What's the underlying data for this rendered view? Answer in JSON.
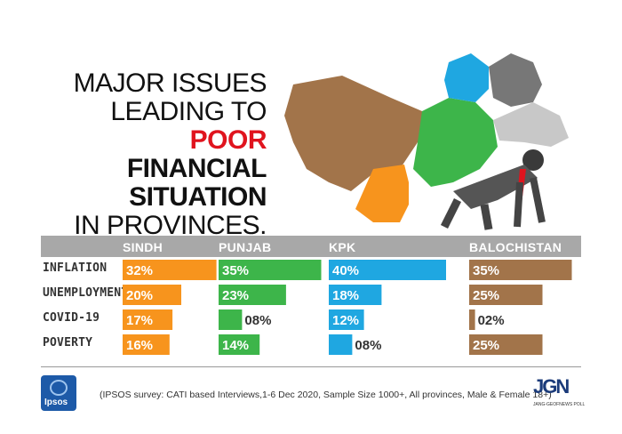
{
  "title": {
    "line1": "MAJOR ISSUES",
    "line2": "LEADING TO",
    "line3_red": "POOR",
    "line3_rest": " FINANCIAL",
    "line4": "SITUATION",
    "line5": "IN PROVINCES."
  },
  "chart_data": {
    "type": "bar",
    "categories": [
      "INFLATION",
      "UNEMPLOYMENT",
      "COVID-19",
      "POVERTY"
    ],
    "series": [
      {
        "name": "SINDH",
        "color": "#f7941d",
        "values": [
          32,
          20,
          17,
          16
        ],
        "labels": [
          "32%",
          "20%",
          "17%",
          "16%"
        ]
      },
      {
        "name": "PUNJAB",
        "color": "#3db54a",
        "values": [
          35,
          23,
          8,
          14
        ],
        "labels": [
          "35%",
          "23%",
          "08%",
          "14%"
        ]
      },
      {
        "name": "KPK",
        "color": "#1fa7e1",
        "values": [
          40,
          18,
          12,
          8
        ],
        "labels": [
          "40%",
          "18%",
          "12%",
          "08%"
        ]
      },
      {
        "name": "BALOCHISTAN",
        "color": "#a2744a",
        "values": [
          35,
          25,
          2,
          25
        ],
        "labels": [
          "35%",
          "25%",
          "02%",
          "25%"
        ]
      }
    ]
  },
  "footer": {
    "note": "(IPSOS survey: CATI based Interviews,1-6 Dec 2020, Sample Size 1000+, All provinces, Male & Female 18+)",
    "ipsos_logo_text": "Ipsos",
    "jgp_logo_text": "JGN",
    "jgp_sub": "JANG-GEOFNEWS POLL"
  },
  "icons": {
    "ipsos": "ipsos-logo",
    "jgp": "jang-geo-poll-logo",
    "map": "pakistan-map-illustration"
  }
}
